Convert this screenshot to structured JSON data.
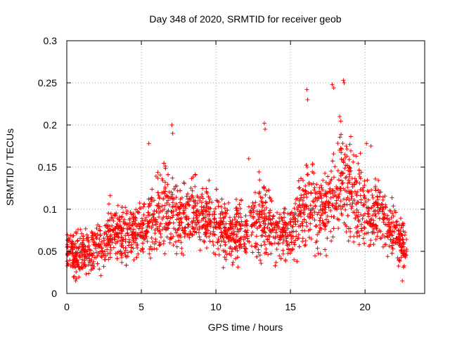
{
  "chart_data": {
    "type": "scatter",
    "title": "Day 348 of 2020, SRMTID for receiver geob",
    "xlabel": "GPS time / hours",
    "ylabel": "SRMTID / TECUs",
    "xlim": [
      0,
      24
    ],
    "ylim": [
      0,
      0.3
    ],
    "xticks": [
      0,
      5,
      10,
      15,
      20
    ],
    "xtick_labels": [
      "0",
      "5",
      "10",
      "15",
      "20"
    ],
    "yticks": [
      0,
      0.05,
      0.1,
      0.15,
      0.2,
      0.25,
      0.3
    ],
    "ytick_labels": [
      "0",
      "0.05",
      "0.1",
      "0.15",
      "0.2",
      "0.25",
      "0.3"
    ],
    "grid": true,
    "marker": "+",
    "colors": {
      "series": "#ff0000",
      "grid": "#a0a0a0",
      "axis": "#000000"
    },
    "envelope": {
      "x": [
        0,
        0.5,
        1,
        1.5,
        2,
        2.5,
        3,
        3.5,
        4,
        4.5,
        5,
        5.5,
        6,
        6.5,
        7,
        7.5,
        8,
        8.5,
        9,
        9.5,
        10,
        10.5,
        11,
        11.5,
        12,
        12.5,
        13,
        13.5,
        14,
        14.5,
        15,
        15.5,
        16,
        16.5,
        17,
        17.5,
        18,
        18.5,
        19,
        19.5,
        20,
        20.5,
        21,
        21.5,
        22,
        22.5,
        22.8
      ],
      "center": [
        0.05,
        0.045,
        0.048,
        0.05,
        0.055,
        0.06,
        0.075,
        0.07,
        0.07,
        0.075,
        0.08,
        0.085,
        0.09,
        0.1,
        0.1,
        0.09,
        0.095,
        0.1,
        0.095,
        0.09,
        0.085,
        0.075,
        0.07,
        0.075,
        0.075,
        0.08,
        0.09,
        0.085,
        0.075,
        0.07,
        0.075,
        0.09,
        0.1,
        0.1,
        0.095,
        0.105,
        0.12,
        0.13,
        0.12,
        0.11,
        0.1,
        0.09,
        0.1,
        0.08,
        0.075,
        0.06,
        0.05
      ],
      "spread": [
        0.02,
        0.025,
        0.025,
        0.025,
        0.025,
        0.03,
        0.03,
        0.03,
        0.03,
        0.03,
        0.03,
        0.035,
        0.04,
        0.045,
        0.04,
        0.035,
        0.035,
        0.035,
        0.035,
        0.03,
        0.03,
        0.03,
        0.03,
        0.03,
        0.035,
        0.04,
        0.045,
        0.035,
        0.025,
        0.025,
        0.03,
        0.04,
        0.045,
        0.045,
        0.04,
        0.045,
        0.055,
        0.06,
        0.055,
        0.045,
        0.04,
        0.035,
        0.04,
        0.03,
        0.03,
        0.025,
        0.02
      ]
    },
    "peaks": [
      {
        "x": 5.5,
        "y": 0.178
      },
      {
        "x": 7.05,
        "y": 0.2
      },
      {
        "x": 7.1,
        "y": 0.19
      },
      {
        "x": 13.25,
        "y": 0.202
      },
      {
        "x": 13.3,
        "y": 0.195
      },
      {
        "x": 16.1,
        "y": 0.242
      },
      {
        "x": 16.15,
        "y": 0.23
      },
      {
        "x": 17.8,
        "y": 0.248
      },
      {
        "x": 17.9,
        "y": 0.244
      },
      {
        "x": 18.55,
        "y": 0.253
      },
      {
        "x": 18.6,
        "y": 0.25
      },
      {
        "x": 18.3,
        "y": 0.21
      },
      {
        "x": 20.1,
        "y": 0.178
      },
      {
        "x": 20.4,
        "y": 0.175
      },
      {
        "x": 12.2,
        "y": 0.16
      },
      {
        "x": 22.5,
        "y": 0.015
      },
      {
        "x": 0.6,
        "y": 0.015
      }
    ]
  }
}
